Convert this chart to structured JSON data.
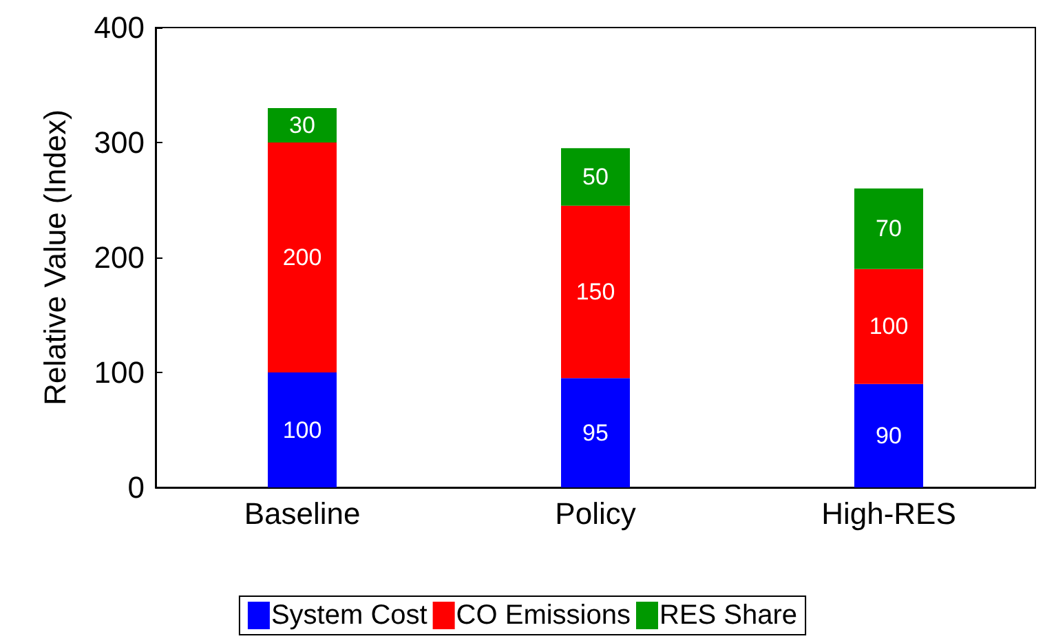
{
  "chart_data": {
    "type": "bar",
    "stacked": true,
    "ylabel": "Relative Value (Index)",
    "categories": [
      "Baseline",
      "Policy",
      "High-RES"
    ],
    "series": [
      {
        "name": "System Cost",
        "color": "#0000ff",
        "values": [
          100,
          95,
          90
        ]
      },
      {
        "name": "CO Emissions",
        "color": "#ff0000",
        "values": [
          200,
          150,
          100
        ]
      },
      {
        "name": "RES Share",
        "color": "#009900",
        "values": [
          30,
          50,
          70
        ]
      }
    ],
    "ylim": [
      0,
      400
    ],
    "yticks": [
      0,
      100,
      200,
      300,
      400
    ],
    "data_labels": true,
    "legend": "bottom",
    "grid": false
  }
}
